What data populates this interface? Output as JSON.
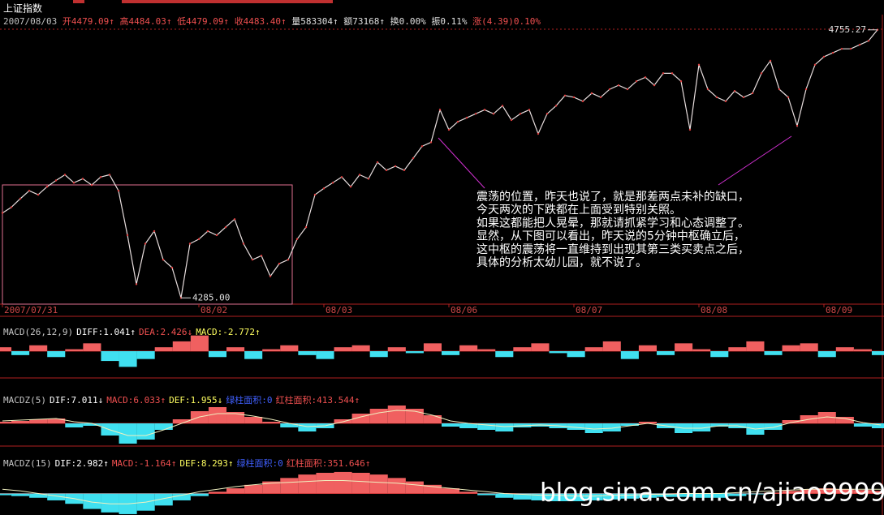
{
  "header": {
    "title": "上证指数",
    "items": [
      "2007/08/03",
      "开4479.09↑",
      "高4484.03↑",
      "低4479.09↑",
      "收4483.40↑",
      "量583304↑",
      "额73168↑",
      "换0.00%",
      "振0.11%",
      "涨(4.39)0.10%"
    ]
  },
  "chart_data": [
    {
      "type": "line",
      "color": "#e8dede",
      "xlim": [
        0,
        98
      ],
      "ylim": [
        4274,
        4782
      ],
      "xticks": [
        {
          "value": 0,
          "label": "2007/07/31"
        },
        {
          "value": 22,
          "label": "08/02"
        },
        {
          "value": 36,
          "label": "08/03"
        },
        {
          "value": 50,
          "label": "08/06"
        },
        {
          "value": 64,
          "label": "08/07"
        },
        {
          "value": 78,
          "label": "08/08"
        },
        {
          "value": 92,
          "label": "08/09"
        }
      ],
      "values": [
        4434,
        4444,
        4459,
        4473,
        4466,
        4480,
        4491,
        4501,
        4487,
        4494,
        4483,
        4497,
        4501,
        4473,
        4395,
        4309,
        4380,
        4402,
        4352,
        4338,
        4285,
        4380,
        4388,
        4402,
        4395,
        4409,
        4423,
        4380,
        4352,
        4359,
        4323,
        4345,
        4352,
        4388,
        4409,
        4466,
        4477,
        4487,
        4497,
        4480,
        4501,
        4494,
        4523,
        4509,
        4516,
        4509,
        4530,
        4551,
        4558,
        4615,
        4580,
        4594,
        4601,
        4608,
        4615,
        4608,
        4622,
        4597,
        4608,
        4615,
        4573,
        4608,
        4622,
        4640,
        4637,
        4630,
        4644,
        4637,
        4651,
        4658,
        4651,
        4665,
        4672,
        4658,
        4679,
        4679,
        4665,
        4580,
        4694,
        4651,
        4637,
        4630,
        4648,
        4637,
        4644,
        4679,
        4701,
        4651,
        4637,
        4587,
        4651,
        4694,
        4708,
        4715,
        4722,
        4722,
        4729,
        4736,
        4755.27
      ],
      "annotations": [
        {
          "value": 4755.27,
          "label": "4755.27"
        },
        {
          "value": 4285,
          "label": "4285.00"
        }
      ]
    },
    {
      "type": "bar",
      "legend": [
        "MACD(26,12,9)",
        "DIFF:1.041↑",
        "DEA:2.426↓",
        "MACD:-2.772↑"
      ],
      "up_color": "#f06060",
      "down_color": "#40e0f0",
      "xlim": [
        0,
        49
      ],
      "ylim": [
        -12,
        12
      ],
      "values": [
        2,
        -2,
        3,
        -3,
        1,
        4,
        -5,
        -8,
        -4,
        2,
        5,
        8,
        -3,
        2,
        -4,
        1,
        3,
        -2,
        -4,
        2,
        3,
        -3,
        2,
        -1,
        4,
        -2,
        3,
        1,
        -3,
        2,
        4,
        -1,
        -3,
        2,
        5,
        -4,
        3,
        -2,
        4,
        1,
        -3,
        2,
        5,
        -2,
        3,
        4,
        -3,
        2,
        1,
        -2
      ]
    },
    {
      "type": "bar",
      "legend": [
        "MACDZ(5)",
        "DIF:7.011↓",
        "MACD:6.033↑",
        "DEF:1.955↓",
        "绿柱面积:0",
        "红柱面积:413.544↑"
      ],
      "up_color": "#f06060",
      "down_color": "#40e0f0",
      "line_color": "#f0f0c0",
      "xlim": [
        0,
        49
      ],
      "ylim": [
        -26,
        34
      ],
      "values": [
        2,
        3,
        5,
        6,
        -5,
        -3,
        -15,
        -25,
        -20,
        -8,
        5,
        15,
        20,
        14,
        8,
        2,
        -5,
        -10,
        -6,
        5,
        12,
        18,
        22,
        18,
        10,
        -4,
        -6,
        -8,
        -10,
        -5,
        -4,
        -6,
        -8,
        -12,
        -10,
        -3,
        2,
        -6,
        -12,
        -10,
        -4,
        -6,
        -14,
        -8,
        4,
        10,
        14,
        8,
        -4,
        -6
      ],
      "line_values": [
        3,
        4,
        5,
        6,
        2,
        0,
        -8,
        -15,
        -15,
        -8,
        0,
        8,
        12,
        12,
        9,
        5,
        0,
        -4,
        -3,
        2,
        8,
        13,
        16,
        15,
        10,
        3,
        0,
        -2,
        -4,
        -3,
        -2,
        -3,
        -5,
        -7,
        -6,
        -3,
        0,
        -3,
        -6,
        -6,
        -3,
        -3,
        -7,
        -5,
        1,
        5,
        8,
        6,
        1,
        -2
      ]
    },
    {
      "type": "bar",
      "legend": [
        "MACDZ(15)",
        "DIF:2.982↑",
        "MACD:-1.164↑",
        "DEF:8.293↑",
        "绿柱面积:0",
        "红柱面积:351.646↑"
      ],
      "up_color": "#f06060",
      "down_color": "#40e0f0",
      "line_color": "#f0f0c0",
      "xlim": [
        0,
        49
      ],
      "ylim": [
        -25,
        40
      ],
      "values": [
        -2,
        -3,
        -5,
        -8,
        -12,
        -18,
        -22,
        -24,
        -20,
        -14,
        -8,
        -3,
        2,
        6,
        10,
        14,
        18,
        22,
        24,
        25,
        24,
        22,
        18,
        14,
        10,
        6,
        2,
        -2,
        -5,
        -7,
        -8,
        -9,
        -9,
        -8,
        -7,
        -6,
        -5,
        -4,
        -4,
        -5,
        -5,
        -3,
        -1,
        1,
        3,
        5,
        6,
        5,
        4,
        3
      ],
      "line_values": [
        5,
        3,
        0,
        -3,
        -6,
        -10,
        -12,
        -12,
        -10,
        -6,
        -2,
        2,
        5,
        8,
        10,
        12,
        13,
        14,
        15,
        15,
        14,
        13,
        12,
        10,
        8,
        6,
        4,
        2,
        0,
        -1,
        -2,
        -2,
        -3,
        -3,
        -2,
        -2,
        -1,
        -1,
        0,
        0,
        0,
        1,
        2,
        3,
        4,
        5,
        5,
        5,
        5,
        5
      ]
    }
  ],
  "annotation": [
    "震荡的位置，昨天也说了，就是那差两点未补的缺口，",
    "今天两次的下跌都在上面受到特别关照。",
    "如果这都能把人晃晕，那就请抓紧学习和心态调整了。",
    "显然，从下图可以看出，昨天说的5分钟中枢确立后，",
    "这中枢的震荡将一直维持到出现其第三类买卖点之后，",
    "具体的分析太幼儿园，就不说了。"
  ],
  "watermark": "blog.sina.com.cn/ajiao9999"
}
